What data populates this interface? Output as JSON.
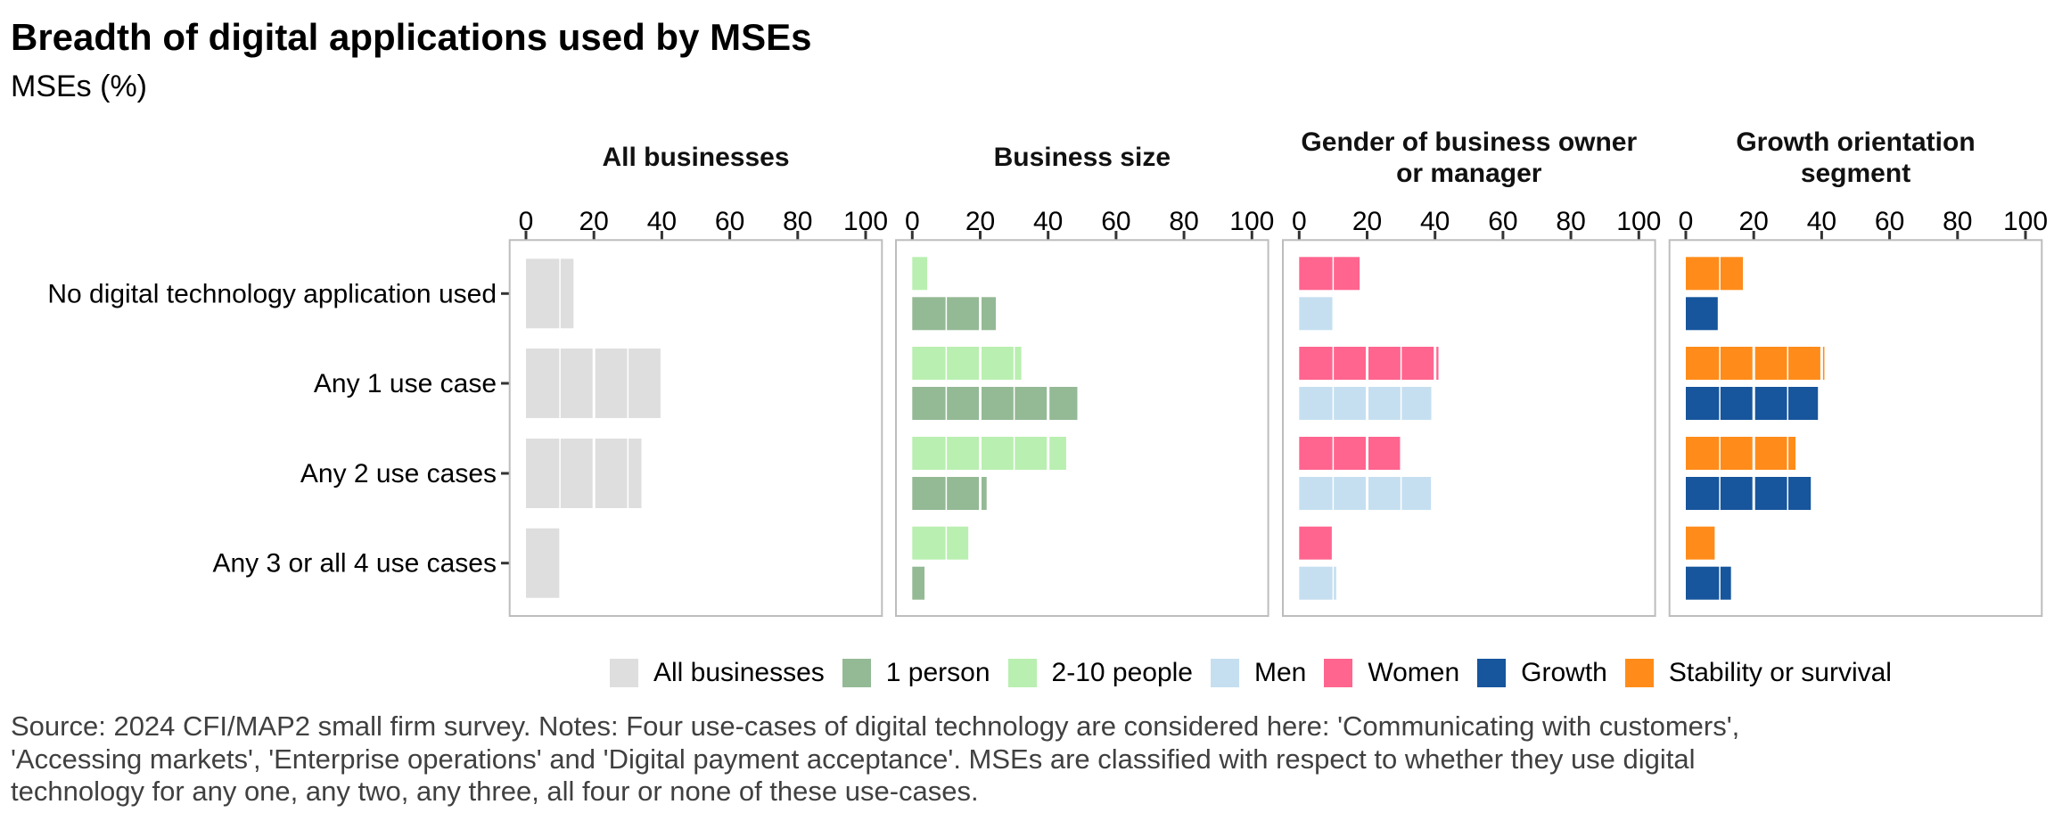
{
  "title": "Breadth of digital applications used by MSEs",
  "subtitle": "MSEs (%)",
  "footer": "Source: 2024 CFI/MAP2 small firm survey. Notes: Four use-cases of digital technology are considered here: 'Communicating with customers', 'Accessing markets', 'Enterprise operations' and 'Digital payment acceptance'. MSEs are classified with respect to whether they use digital technology for any one, any two, any three, all four or none of these use-cases.",
  "footer_lines": [
    "Source: 2024 CFI/MAP2 small firm survey. Notes: Four use-cases of digital technology are considered here: 'Communicating with customers',",
    "'Accessing markets', 'Enterprise operations' and 'Digital payment acceptance'. MSEs are classified with respect to whether they use digital",
    "technology for any one, any two, any three, all four or none of these use-cases."
  ],
  "legend": [
    {
      "label": "All businesses",
      "color": "#dedede"
    },
    {
      "label": "1 person",
      "color": "#94b995"
    },
    {
      "label": "2-10 people",
      "color": "#b9efb0"
    },
    {
      "label": "Men",
      "color": "#c5dff0"
    },
    {
      "label": "Women",
      "color": "#ff658f"
    },
    {
      "label": "Growth",
      "color": "#17559c"
    },
    {
      "label": "Stability or survival",
      "color": "#ff8c1a"
    }
  ],
  "chart_data": {
    "type": "bar",
    "orientation": "horizontal",
    "title": "Breadth of digital applications used by MSEs",
    "subtitle": "MSEs (%)",
    "xlabel": "",
    "ylabel": "",
    "xlim": [
      0,
      100
    ],
    "x_ticks": [
      0,
      20,
      40,
      60,
      80,
      100
    ],
    "grid": true,
    "legend_position": "bottom",
    "categories": [
      "No digital technology application used",
      "Any 1 use case",
      "Any 2 use cases",
      "Any 3 or all 4 use cases"
    ],
    "panels": [
      {
        "title": "All businesses",
        "series": [
          {
            "name": "All businesses",
            "color": "#dedede",
            "values": [
              14,
              40,
              34,
              10
            ]
          }
        ]
      },
      {
        "title": "Business size",
        "series": [
          {
            "name": "1 person",
            "color": "#94b995",
            "values": [
              24.6,
              48.6,
              21.9,
              3.6
            ]
          },
          {
            "name": "2-10 people",
            "color": "#b9efb0",
            "values": [
              4.4,
              32.1,
              45.3,
              16.5
            ]
          }
        ]
      },
      {
        "title": "Gender of business owner or manager",
        "title_lines": [
          "Gender of business owner",
          "or manager"
        ],
        "series": [
          {
            "name": "Men",
            "color": "#c5dff0",
            "values": [
              9.8,
              38.9,
              38.8,
              10.9
            ]
          },
          {
            "name": "Women",
            "color": "#ff658f",
            "values": [
              17.8,
              41.0,
              29.7,
              9.6
            ]
          }
        ]
      },
      {
        "title": "Growth orientation segment",
        "title_lines": [
          "Growth orientation",
          "segment"
        ],
        "series": [
          {
            "name": "Growth",
            "color": "#17559c",
            "values": [
              9.4,
              38.9,
              36.8,
              13.3
            ]
          },
          {
            "name": "Stability or survival",
            "color": "#ff8c1a",
            "values": [
              16.8,
              40.8,
              32.3,
              8.5
            ]
          }
        ]
      }
    ]
  }
}
